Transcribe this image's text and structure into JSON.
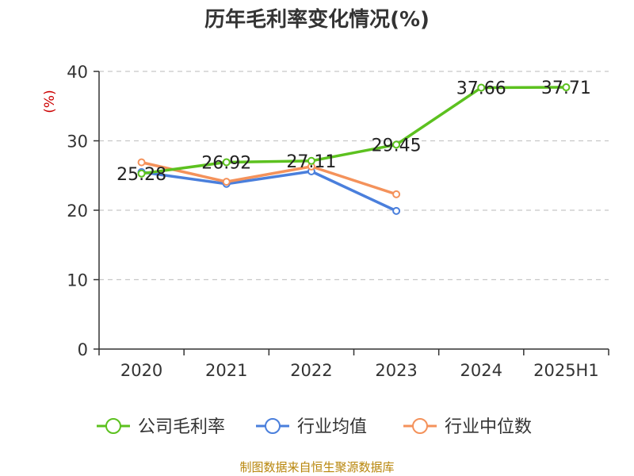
{
  "chart_data": {
    "type": "line",
    "title": "历年毛利率变化情况(%)",
    "ylabel": "(%)",
    "xlabel": "",
    "categories": [
      "2020",
      "2021",
      "2022",
      "2023",
      "2024",
      "2025H1"
    ],
    "ylim": [
      0,
      40
    ],
    "yticks": [
      0,
      10,
      20,
      30,
      40
    ],
    "grid": true,
    "legend_position": "bottom",
    "series": [
      {
        "name": "公司毛利率",
        "color": "#5cc11f",
        "values": [
          25.28,
          26.92,
          27.11,
          29.45,
          37.66,
          37.71
        ],
        "labels": [
          "25.28",
          "26.92",
          "27.11",
          "29.45",
          "37.66",
          "37.71"
        ]
      },
      {
        "name": "行业均值",
        "color": "#4a7fdc",
        "values": [
          25.5,
          23.8,
          25.6,
          19.9,
          null,
          null
        ]
      },
      {
        "name": "行业中位数",
        "color": "#f4925b",
        "values": [
          26.9,
          24.1,
          26.3,
          22.3,
          null,
          null
        ]
      }
    ]
  },
  "source": "制图数据来自恒生聚源数据库"
}
